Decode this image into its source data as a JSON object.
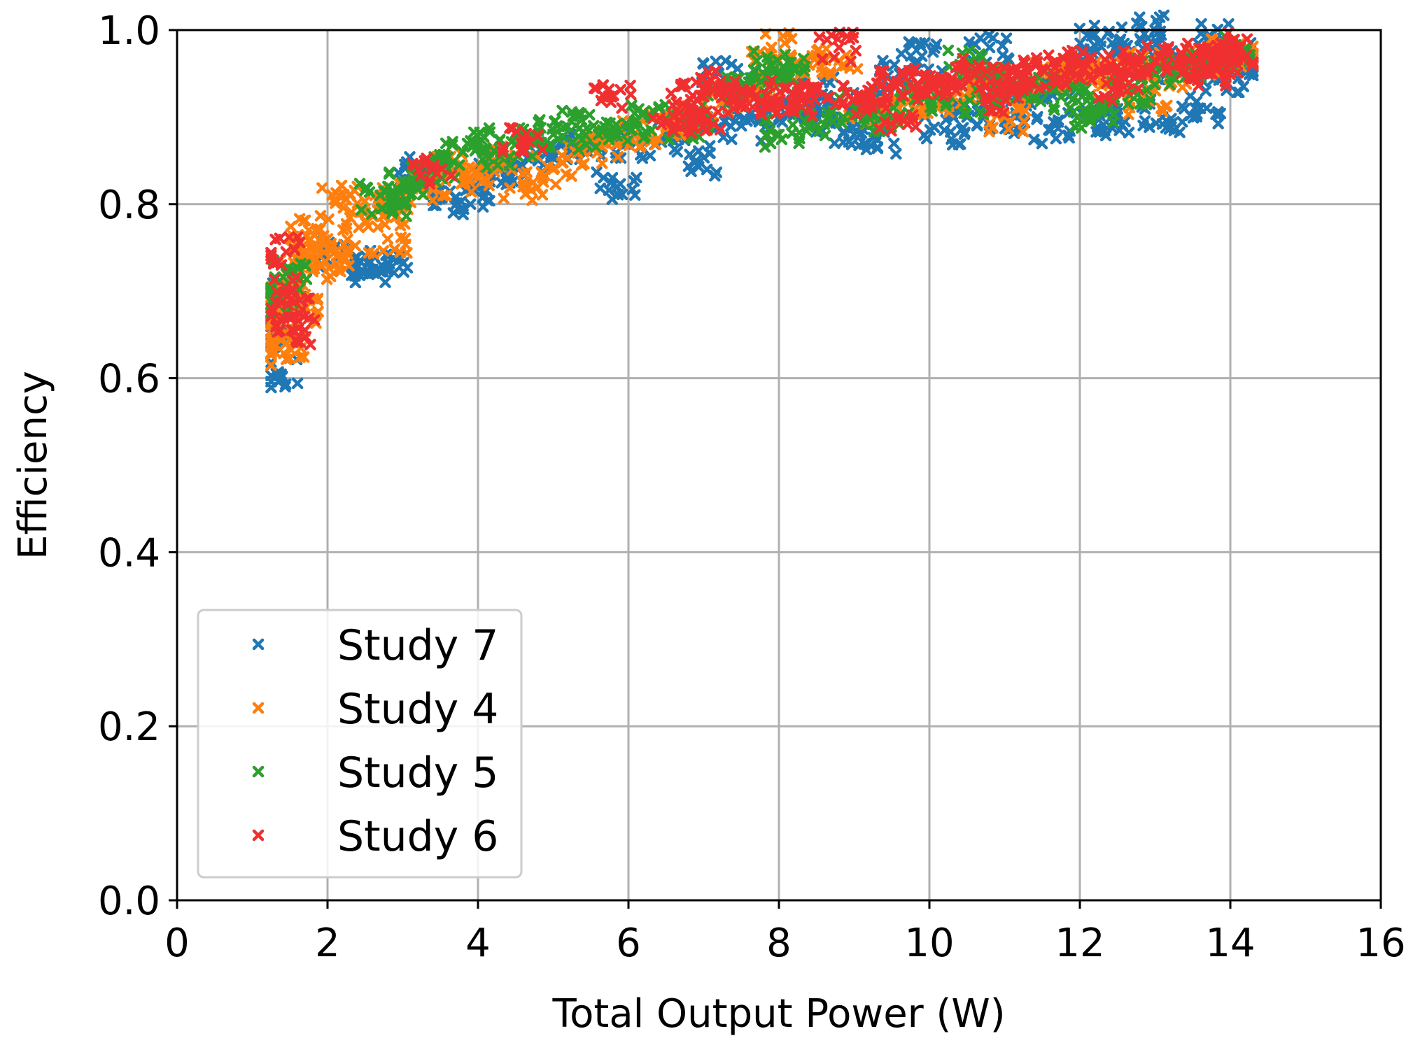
{
  "chart_data": {
    "type": "scatter",
    "title": "",
    "xlabel": "Total Output Power (W)",
    "ylabel": "Efficiency",
    "xlim": [
      0,
      16
    ],
    "ylim": [
      0,
      1.0
    ],
    "xticks": [
      0,
      2,
      4,
      6,
      8,
      10,
      12,
      14,
      16
    ],
    "yticks": [
      0.0,
      0.2,
      0.4,
      0.6,
      0.8,
      1.0
    ],
    "xtick_labels": [
      "0",
      "2",
      "4",
      "6",
      "8",
      "10",
      "12",
      "14",
      "16"
    ],
    "ytick_labels": [
      "0.0",
      "0.2",
      "0.4",
      "0.6",
      "0.8",
      "1.0"
    ],
    "grid": true,
    "marker": "x",
    "legend_position": "lower-left",
    "series": [
      {
        "name": "Study 7",
        "color": "#1f77b4",
        "points": [
          [
            1.35,
            0.605
          ],
          [
            1.32,
            0.65
          ],
          [
            1.4,
            0.7
          ],
          [
            2.15,
            0.74
          ],
          [
            2.55,
            0.735
          ],
          [
            2.6,
            0.725
          ],
          [
            2.8,
            0.725
          ],
          [
            3.2,
            0.84
          ],
          [
            3.5,
            0.815
          ],
          [
            3.9,
            0.8
          ],
          [
            4.1,
            0.83
          ],
          [
            4.4,
            0.84
          ],
          [
            4.8,
            0.85
          ],
          [
            5.2,
            0.86
          ],
          [
            5.5,
            0.87
          ],
          [
            5.85,
            0.82
          ],
          [
            6.1,
            0.87
          ],
          [
            6.5,
            0.88
          ],
          [
            6.9,
            0.85
          ],
          [
            7.1,
            0.9
          ],
          [
            7.5,
            0.89
          ],
          [
            7.2,
            0.95
          ],
          [
            7.6,
            0.94
          ],
          [
            8.0,
            0.9
          ],
          [
            8.3,
            0.91
          ],
          [
            8.7,
            0.9
          ],
          [
            9.0,
            0.88
          ],
          [
            9.3,
            0.875
          ],
          [
            9.6,
            0.95
          ],
          [
            9.9,
            0.97
          ],
          [
            10.2,
            0.885
          ],
          [
            10.5,
            0.9
          ],
          [
            10.8,
            0.98
          ],
          [
            11.0,
            0.895
          ],
          [
            11.3,
            0.93
          ],
          [
            11.6,
            0.885
          ],
          [
            11.9,
            0.96
          ],
          [
            12.1,
            0.9
          ],
          [
            12.4,
            0.97
          ],
          [
            12.6,
            0.895
          ],
          [
            12.8,
            0.99
          ],
          [
            13.1,
            0.9
          ],
          [
            13.3,
            0.96
          ],
          [
            13.6,
            0.91
          ],
          [
            13.8,
            0.99
          ],
          [
            14.0,
            0.97
          ],
          [
            14.2,
            0.96
          ],
          [
            13.0,
            1.0
          ],
          [
            12.2,
            0.995
          ],
          [
            10.6,
            0.93
          ],
          [
            9.2,
            0.92
          ],
          [
            8.5,
            0.93
          ],
          [
            11.8,
            0.94
          ],
          [
            13.9,
            0.945
          ]
        ]
      },
      {
        "name": "Study 4",
        "color": "#ff7f0e",
        "points": [
          [
            1.3,
            0.63
          ],
          [
            1.35,
            0.66
          ],
          [
            1.4,
            0.69
          ],
          [
            1.45,
            0.64
          ],
          [
            1.5,
            0.7
          ],
          [
            1.6,
            0.72
          ],
          [
            1.7,
            0.68
          ],
          [
            1.8,
            0.75
          ],
          [
            1.9,
            0.73
          ],
          [
            2.0,
            0.76
          ],
          [
            2.1,
            0.745
          ],
          [
            1.75,
            0.77
          ],
          [
            2.15,
            0.81
          ],
          [
            2.5,
            0.79
          ],
          [
            2.8,
            0.76
          ],
          [
            2.9,
            0.8
          ],
          [
            3.0,
            0.81
          ],
          [
            3.4,
            0.82
          ],
          [
            3.7,
            0.84
          ],
          [
            4.0,
            0.83
          ],
          [
            4.3,
            0.85
          ],
          [
            4.6,
            0.82
          ],
          [
            5.0,
            0.84
          ],
          [
            5.4,
            0.86
          ],
          [
            5.7,
            0.87
          ],
          [
            6.1,
            0.88
          ],
          [
            6.5,
            0.89
          ],
          [
            6.9,
            0.9
          ],
          [
            7.3,
            0.92
          ],
          [
            7.7,
            0.93
          ],
          [
            7.9,
            0.98
          ],
          [
            8.4,
            0.96
          ],
          [
            8.8,
            0.965
          ],
          [
            9.2,
            0.9
          ],
          [
            9.6,
            0.91
          ],
          [
            10.0,
            0.92
          ],
          [
            10.4,
            0.93
          ],
          [
            10.8,
            0.94
          ],
          [
            11.2,
            0.93
          ],
          [
            11.6,
            0.95
          ],
          [
            12.0,
            0.94
          ],
          [
            12.4,
            0.95
          ],
          [
            12.8,
            0.96
          ],
          [
            13.2,
            0.95
          ],
          [
            13.6,
            0.96
          ],
          [
            14.0,
            0.975
          ],
          [
            14.25,
            0.97
          ],
          [
            11.0,
            0.9
          ],
          [
            12.9,
            0.92
          ]
        ]
      },
      {
        "name": "Study 5",
        "color": "#2ca02c",
        "points": [
          [
            1.45,
            0.72
          ],
          [
            1.4,
            0.69
          ],
          [
            2.7,
            0.81
          ],
          [
            2.85,
            0.8
          ],
          [
            3.0,
            0.825
          ],
          [
            3.3,
            0.83
          ],
          [
            3.6,
            0.84
          ],
          [
            3.8,
            0.86
          ],
          [
            4.0,
            0.87
          ],
          [
            4.3,
            0.86
          ],
          [
            4.6,
            0.87
          ],
          [
            5.0,
            0.88
          ],
          [
            5.3,
            0.89
          ],
          [
            5.6,
            0.88
          ],
          [
            6.0,
            0.89
          ],
          [
            6.3,
            0.9
          ],
          [
            6.8,
            0.89
          ],
          [
            7.2,
            0.93
          ],
          [
            7.6,
            0.94
          ],
          [
            7.9,
            0.96
          ],
          [
            8.1,
            0.955
          ],
          [
            8.0,
            0.88
          ],
          [
            8.5,
            0.89
          ],
          [
            9.0,
            0.91
          ],
          [
            9.4,
            0.9
          ],
          [
            9.8,
            0.92
          ],
          [
            10.2,
            0.93
          ],
          [
            10.7,
            0.92
          ],
          [
            11.1,
            0.94
          ],
          [
            11.5,
            0.93
          ],
          [
            11.9,
            0.92
          ],
          [
            12.3,
            0.91
          ],
          [
            12.7,
            0.93
          ],
          [
            13.0,
            0.95
          ],
          [
            13.4,
            0.96
          ],
          [
            13.8,
            0.97
          ],
          [
            14.1,
            0.975
          ],
          [
            12.1,
            0.905
          ],
          [
            10.5,
            0.96
          ]
        ]
      },
      {
        "name": "Study 6",
        "color": "#f03030",
        "points": [
          [
            1.45,
            0.745
          ],
          [
            1.5,
            0.7
          ],
          [
            1.48,
            0.67
          ],
          [
            1.55,
            0.655
          ],
          [
            3.4,
            0.84
          ],
          [
            4.6,
            0.875
          ],
          [
            5.8,
            0.925
          ],
          [
            6.6,
            0.9
          ],
          [
            6.8,
            0.91
          ],
          [
            6.9,
            0.94
          ],
          [
            7.0,
            0.89
          ],
          [
            7.2,
            0.93
          ],
          [
            7.4,
            0.92
          ],
          [
            7.7,
            0.925
          ],
          [
            8.0,
            0.92
          ],
          [
            8.2,
            0.915
          ],
          [
            8.5,
            0.93
          ],
          [
            8.8,
            0.98
          ],
          [
            9.0,
            0.92
          ],
          [
            9.2,
            0.93
          ],
          [
            9.5,
            0.94
          ],
          [
            9.8,
            0.935
          ],
          [
            10.0,
            0.94
          ],
          [
            10.3,
            0.945
          ],
          [
            10.6,
            0.95
          ],
          [
            10.9,
            0.94
          ],
          [
            11.2,
            0.95
          ],
          [
            11.5,
            0.955
          ],
          [
            11.8,
            0.95
          ],
          [
            12.1,
            0.96
          ],
          [
            12.4,
            0.955
          ],
          [
            12.7,
            0.96
          ],
          [
            13.0,
            0.965
          ],
          [
            13.3,
            0.96
          ],
          [
            13.6,
            0.97
          ],
          [
            13.9,
            0.965
          ],
          [
            14.1,
            0.98
          ],
          [
            14.2,
            0.97
          ],
          [
            9.6,
            0.9
          ],
          [
            11.0,
            0.92
          ],
          [
            12.5,
            0.935
          ],
          [
            13.7,
            0.95
          ]
        ]
      }
    ]
  },
  "legend": {
    "items": [
      {
        "label": "Study 7",
        "color": "#1f77b4"
      },
      {
        "label": "Study 4",
        "color": "#ff7f0e"
      },
      {
        "label": "Study 5",
        "color": "#2ca02c"
      },
      {
        "label": "Study 6",
        "color": "#f03030"
      }
    ]
  }
}
